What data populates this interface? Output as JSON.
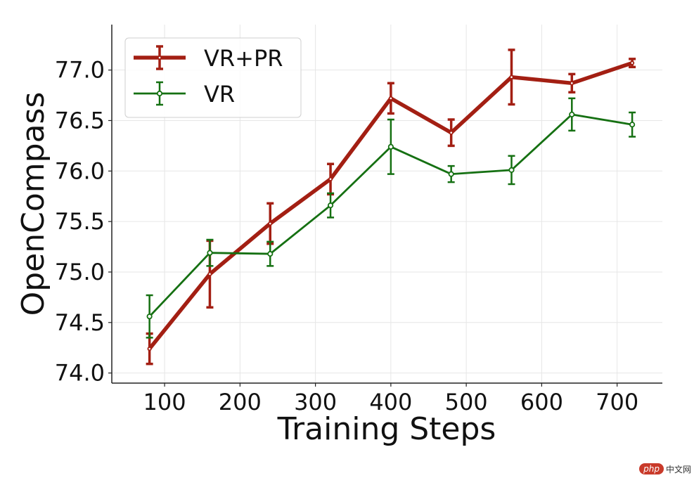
{
  "chart_data": {
    "type": "line",
    "title": "",
    "xlabel": "Training Steps",
    "ylabel": "OpenCompass",
    "xlim": [
      30,
      760
    ],
    "ylim": [
      73.9,
      77.45
    ],
    "xticks": [
      100,
      200,
      300,
      400,
      500,
      600,
      700
    ],
    "xtick_labels": [
      "100",
      "200",
      "300",
      "400",
      "500",
      "600",
      "700"
    ],
    "yticks": [
      74.0,
      74.5,
      75.0,
      75.5,
      76.0,
      76.5,
      77.0
    ],
    "ytick_labels": [
      "74.0",
      "74.5",
      "75.0",
      "75.5",
      "76.0",
      "76.5",
      "77.0"
    ],
    "grid": true,
    "legend_position": "top-left",
    "x": [
      80,
      160,
      240,
      320,
      400,
      480,
      560,
      640,
      720
    ],
    "series": [
      {
        "name": "VR+PR",
        "color": "#a31f13",
        "values": [
          74.24,
          74.98,
          75.48,
          75.92,
          76.72,
          76.38,
          76.93,
          76.87,
          77.07
        ],
        "errors": [
          0.15,
          0.33,
          0.2,
          0.15,
          0.15,
          0.13,
          0.27,
          0.09,
          0.04
        ]
      },
      {
        "name": "VR",
        "color": "#157012",
        "values": [
          74.56,
          75.19,
          75.18,
          75.66,
          76.24,
          75.97,
          76.01,
          76.56,
          76.46
        ],
        "errors": [
          0.21,
          0.13,
          0.12,
          0.12,
          0.27,
          0.08,
          0.14,
          0.16,
          0.12
        ]
      }
    ]
  },
  "watermark": {
    "logo_text": "php",
    "site_text": "中文网"
  }
}
